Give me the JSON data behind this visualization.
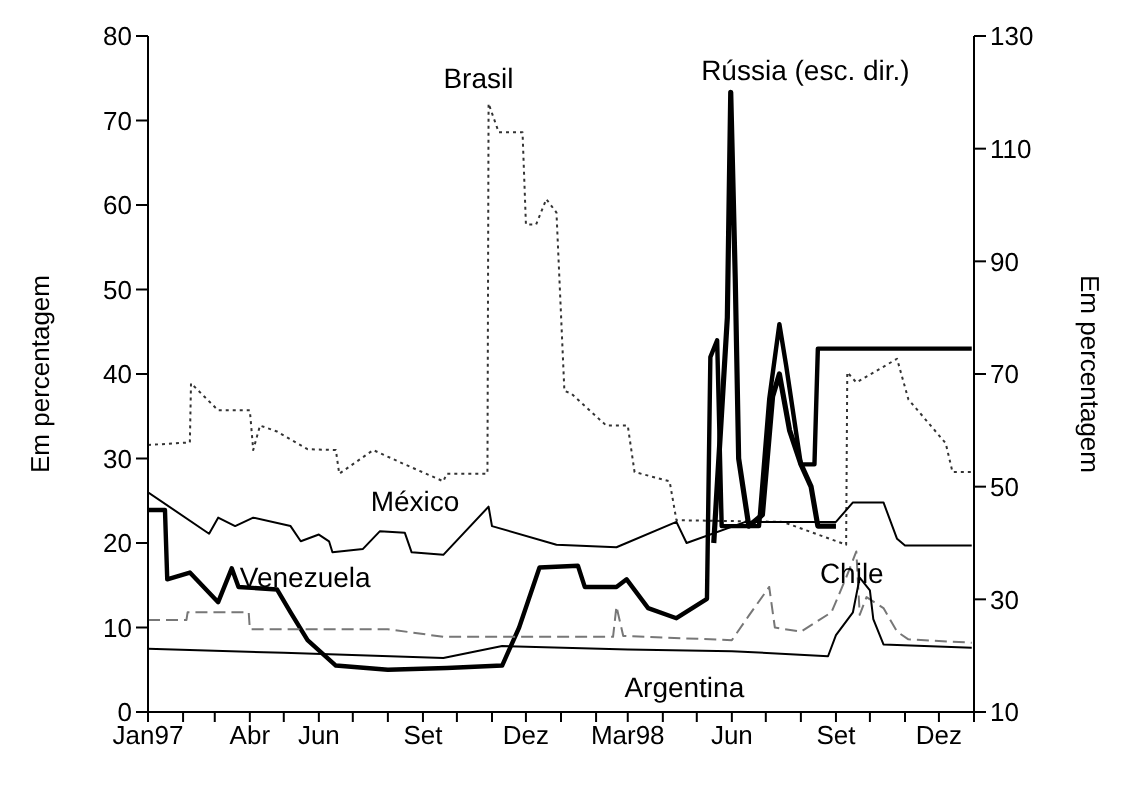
{
  "chart_data": {
    "type": "line",
    "ylabel": "Em percentagem",
    "y2label": "Em percentagem",
    "marker": "none",
    "legend": false,
    "grid": false,
    "xlim": [
      "1997-01-01",
      "1999-01-01"
    ],
    "xticks": [
      {
        "value": "1997-01",
        "label": "Jan97"
      },
      {
        "value": "1997-02",
        "label": null
      },
      {
        "value": "1997-03",
        "label": null
      },
      {
        "value": "1997-04",
        "label": "Abr"
      },
      {
        "value": "1997-05",
        "label": null
      },
      {
        "value": "1997-06",
        "label": "Jun"
      },
      {
        "value": "1997-07",
        "label": null
      },
      {
        "value": "1997-08",
        "label": null
      },
      {
        "value": "1997-09",
        "label": "Set"
      },
      {
        "value": "1997-10",
        "label": null
      },
      {
        "value": "1997-11",
        "label": null
      },
      {
        "value": "1997-12",
        "label": "Dez"
      },
      {
        "value": "1998-01",
        "label": null
      },
      {
        "value": "1998-02",
        "label": null
      },
      {
        "value": "1998-03",
        "label": "Mar98"
      },
      {
        "value": "1998-04",
        "label": null
      },
      {
        "value": "1998-05",
        "label": null
      },
      {
        "value": "1998-06",
        "label": "Jun"
      },
      {
        "value": "1998-07",
        "label": null
      },
      {
        "value": "1998-08",
        "label": null
      },
      {
        "value": "1998-09",
        "label": "Set"
      },
      {
        "value": "1998-10",
        "label": null
      },
      {
        "value": "1998-11",
        "label": null
      },
      {
        "value": "1998-12",
        "label": "Dez"
      },
      {
        "value": "1999-01",
        "label": null
      }
    ],
    "ylim": [
      0,
      80
    ],
    "yticks": [
      0,
      10,
      20,
      30,
      40,
      50,
      60,
      70,
      80
    ],
    "y2lim": [
      10,
      130
    ],
    "y2ticks": [
      10,
      30,
      50,
      70,
      90,
      110,
      130
    ],
    "series": [
      {
        "name": "Brasil",
        "color": "#333333",
        "line_style": "dotted",
        "x": [
          "1997-01-01",
          "1997-02-07",
          "1997-02-08",
          "1997-03-04",
          "1997-04-01",
          "1997-04-04",
          "1997-04-10",
          "1997-04-25",
          "1997-05-22",
          "1997-06-16",
          "1997-06-19",
          "1997-07-19",
          "1997-08-16",
          "1997-09-19",
          "1997-09-22",
          "1997-10-28",
          "1997-10-29",
          "1997-11-07",
          "1997-11-28",
          "1997-12-01",
          "1997-12-10",
          "1997-12-19",
          "1997-12-28",
          "1998-01-04",
          "1998-01-10",
          "1998-02-10",
          "1998-03-01",
          "1998-03-07",
          "1998-04-07",
          "1998-04-13",
          "1998-07-16",
          "1998-09-10",
          "1998-09-11",
          "1998-09-19",
          "1998-10-25",
          "1998-11-04",
          "1998-12-07",
          "1998-12-13",
          "1998-12-30"
        ],
        "values": [
          31.6,
          31.9,
          38.9,
          35.7,
          35.7,
          31,
          33.9,
          33.2,
          31.1,
          31,
          28.2,
          31,
          29.3,
          27.3,
          28.2,
          28.2,
          72,
          68.6,
          68.6,
          57.7,
          57.7,
          60.7,
          59.1,
          38,
          37.7,
          33.9,
          33.9,
          28.4,
          27.3,
          22.7,
          22.5,
          19.8,
          40.2,
          39,
          41.8,
          37,
          31.8,
          28.4,
          28.4
        ]
      },
      {
        "name": "Rússia (esc. dir.)",
        "color": "#000000",
        "axis": "y2",
        "line_style": "solid",
        "x": [
          "1998-05-16",
          "1998-05-28",
          "1998-05-31",
          "1998-06-04",
          "1998-06-07",
          "1998-06-16",
          "1998-06-28",
          "1998-07-07",
          "1998-07-13",
          "1998-07-22",
          "1998-08-01",
          "1998-08-10",
          "1998-08-16",
          "1998-09-01"
        ],
        "values": [
          40,
          80,
          120,
          87,
          55,
          43,
          45,
          66,
          70,
          60,
          54,
          50,
          43,
          43
        ]
      },
      {
        "name": "México",
        "color": "#000000",
        "line_style": "solid",
        "x": [
          "1997-01-01",
          "1997-02-24",
          "1997-03-04",
          "1997-03-19",
          "1997-04-04",
          "1997-05-07",
          "1997-05-16",
          "1997-06-01",
          "1997-06-10",
          "1997-06-13",
          "1997-07-10",
          "1997-07-25",
          "1997-08-16",
          "1997-08-22",
          "1997-09-19",
          "1997-10-29",
          "1997-11-01",
          "1997-12-28",
          "1998-02-19",
          "1998-04-13",
          "1998-04-22",
          "1998-06-13",
          "1998-09-01",
          "1998-09-16",
          "1998-10-13",
          "1998-10-25",
          "1998-11-01",
          "1998-12-30"
        ],
        "values": [
          26,
          21.1,
          23,
          22,
          23,
          22,
          20.2,
          21,
          20.2,
          18.9,
          19.3,
          21.4,
          21.2,
          18.9,
          18.6,
          24.3,
          22,
          19.8,
          19.5,
          22.5,
          20,
          22.5,
          22.5,
          24.8,
          24.8,
          20.5,
          19.7,
          19.7
        ]
      },
      {
        "name": "Venezuela",
        "color": "#000000",
        "line_style": "solid",
        "x": [
          "1997-01-01",
          "1997-01-16",
          "1997-01-18",
          "1997-02-07",
          "1997-03-04",
          "1997-03-16",
          "1997-03-22",
          "1997-04-25",
          "1997-05-07",
          "1997-05-22",
          "1997-06-16",
          "1997-08-01",
          "1997-09-22",
          "1997-11-10",
          "1997-11-25",
          "1997-12-13",
          "1998-01-16",
          "1998-01-22",
          "1998-02-19",
          "1998-02-28",
          "1998-03-19",
          "1998-04-13",
          "1998-05-10",
          "1998-05-13",
          "1998-05-19",
          "1998-05-23",
          "1998-06-25",
          "1998-07-04",
          "1998-07-13",
          "1998-07-19",
          "1998-08-01",
          "1998-08-13",
          "1998-08-16",
          "1998-12-30"
        ],
        "values": [
          23.9,
          23.9,
          15.7,
          16.5,
          13,
          17,
          14.8,
          14.5,
          11.8,
          8.5,
          5.5,
          5,
          5.2,
          5.5,
          10,
          17.1,
          17.3,
          14.8,
          14.8,
          15.7,
          12.3,
          11.1,
          13.4,
          42,
          44,
          22,
          22,
          37,
          45.9,
          41,
          29.3,
          29.3,
          43,
          43
        ]
      },
      {
        "name": "Chile",
        "color": "#777777",
        "line_style": "dashed",
        "x": [
          "1997-01-01",
          "1997-02-04",
          "1997-02-05",
          "1997-03-31",
          "1997-04-01",
          "1997-08-01",
          "1997-09-19",
          "1998-02-16",
          "1998-02-19",
          "1998-02-25",
          "1998-06-01",
          "1998-06-16",
          "1998-07-04",
          "1998-07-09",
          "1998-08-01",
          "1998-08-28",
          "1998-09-10",
          "1998-09-19",
          "1998-09-22",
          "1998-09-28",
          "1998-10-13",
          "1998-10-25",
          "1998-11-04",
          "1998-12-30"
        ],
        "values": [
          10.9,
          10.9,
          11.8,
          11.8,
          9.8,
          9.8,
          8.9,
          8.9,
          12.5,
          9,
          8.5,
          11.4,
          14.8,
          10,
          9.5,
          11.8,
          15.9,
          19,
          11.5,
          13.6,
          12.3,
          9.5,
          8.6,
          8.2
        ]
      },
      {
        "name": "Argentina",
        "color": "#000000",
        "line_style": "solid",
        "x": [
          "1997-01-01",
          "1997-05-01",
          "1997-09-19",
          "1997-11-10",
          "1998-03-01",
          "1998-06-01",
          "1998-08-25",
          "1998-09-01",
          "1998-09-16",
          "1998-09-22",
          "1998-10-01",
          "1998-10-04",
          "1998-10-13",
          "1998-12-30"
        ],
        "values": [
          7.5,
          7,
          6.4,
          7.8,
          7.4,
          7.2,
          6.6,
          9.1,
          11.8,
          15.9,
          14.4,
          11,
          8,
          7.6
        ]
      }
    ]
  }
}
